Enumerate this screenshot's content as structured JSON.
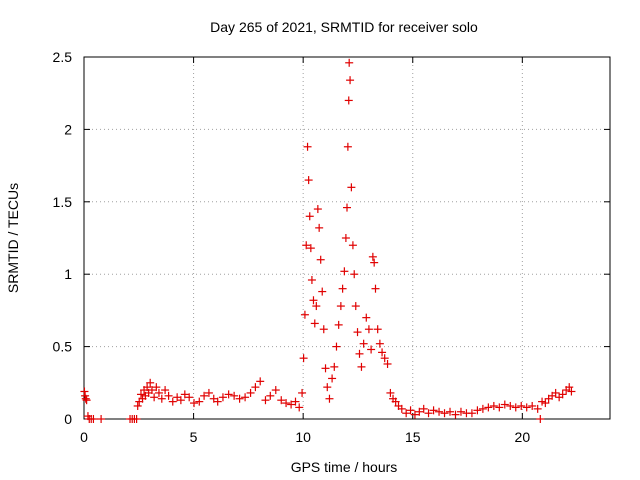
{
  "chart_data": {
    "type": "scatter",
    "title": "Day 265 of 2021, SRMTID for receiver solo",
    "xlabel": "GPS time / hours",
    "ylabel": "SRMTID / TECUs",
    "xlim": [
      0,
      24
    ],
    "ylim": [
      0,
      2.5
    ],
    "xticks": [
      0,
      5,
      10,
      15,
      20
    ],
    "yticks": [
      0,
      0.5,
      1,
      1.5,
      2,
      2.5
    ],
    "xtick_labels": [
      "0",
      "5",
      "10",
      "15",
      "20"
    ],
    "ytick_labels": [
      "0",
      "0.5",
      "1",
      "1.5",
      "2",
      "2.5"
    ],
    "grid": true,
    "marker": "plus",
    "marker_color": "#e00000",
    "series": [
      {
        "name": "SRMTID",
        "points": [
          [
            0.02,
            0.19
          ],
          [
            0.05,
            0.16
          ],
          [
            0.08,
            0.14
          ],
          [
            0.12,
            0.13
          ],
          [
            0.18,
            0.02
          ],
          [
            0.24,
            0.0
          ],
          [
            0.33,
            0.0
          ],
          [
            0.43,
            0.0
          ],
          [
            0.78,
            0.0
          ],
          [
            2.1,
            0.0
          ],
          [
            2.2,
            0.0
          ],
          [
            2.3,
            0.0
          ],
          [
            2.4,
            0.0
          ],
          [
            2.45,
            0.09
          ],
          [
            2.52,
            0.12
          ],
          [
            2.6,
            0.17
          ],
          [
            2.67,
            0.14
          ],
          [
            2.74,
            0.2
          ],
          [
            2.8,
            0.16
          ],
          [
            2.88,
            0.22
          ],
          [
            2.95,
            0.18
          ],
          [
            3.02,
            0.25
          ],
          [
            3.1,
            0.2
          ],
          [
            3.2,
            0.15
          ],
          [
            3.3,
            0.22
          ],
          [
            3.42,
            0.18
          ],
          [
            3.55,
            0.14
          ],
          [
            3.7,
            0.2
          ],
          [
            3.86,
            0.16
          ],
          [
            4.05,
            0.12
          ],
          [
            4.25,
            0.15
          ],
          [
            4.42,
            0.13
          ],
          [
            4.6,
            0.17
          ],
          [
            4.8,
            0.15
          ],
          [
            5.02,
            0.11
          ],
          [
            5.26,
            0.12
          ],
          [
            5.48,
            0.16
          ],
          [
            5.7,
            0.18
          ],
          [
            5.92,
            0.14
          ],
          [
            6.1,
            0.12
          ],
          [
            6.34,
            0.15
          ],
          [
            6.6,
            0.17
          ],
          [
            6.85,
            0.16
          ],
          [
            7.1,
            0.14
          ],
          [
            7.35,
            0.15
          ],
          [
            7.6,
            0.18
          ],
          [
            7.82,
            0.22
          ],
          [
            8.04,
            0.26
          ],
          [
            8.28,
            0.13
          ],
          [
            8.5,
            0.16
          ],
          [
            8.75,
            0.2
          ],
          [
            9.0,
            0.13
          ],
          [
            9.22,
            0.11
          ],
          [
            9.45,
            0.1
          ],
          [
            9.65,
            0.12
          ],
          [
            9.82,
            0.08
          ],
          [
            9.95,
            0.18
          ],
          [
            10.02,
            0.42
          ],
          [
            10.08,
            0.72
          ],
          [
            10.14,
            1.2
          ],
          [
            10.2,
            1.88
          ],
          [
            10.25,
            1.65
          ],
          [
            10.3,
            1.4
          ],
          [
            10.35,
            1.18
          ],
          [
            10.4,
            0.96
          ],
          [
            10.47,
            0.82
          ],
          [
            10.53,
            0.66
          ],
          [
            10.6,
            0.78
          ],
          [
            10.67,
            1.45
          ],
          [
            10.73,
            1.32
          ],
          [
            10.8,
            1.1
          ],
          [
            10.87,
            0.88
          ],
          [
            10.94,
            0.62
          ],
          [
            11.02,
            0.35
          ],
          [
            11.1,
            0.22
          ],
          [
            11.2,
            0.14
          ],
          [
            11.32,
            0.28
          ],
          [
            11.42,
            0.36
          ],
          [
            11.52,
            0.5
          ],
          [
            11.62,
            0.65
          ],
          [
            11.72,
            0.78
          ],
          [
            11.8,
            0.9
          ],
          [
            11.88,
            1.02
          ],
          [
            11.95,
            1.25
          ],
          [
            12.0,
            1.46
          ],
          [
            12.04,
            1.88
          ],
          [
            12.08,
            2.2
          ],
          [
            12.1,
            2.46
          ],
          [
            12.14,
            2.34
          ],
          [
            12.2,
            1.6
          ],
          [
            12.27,
            1.2
          ],
          [
            12.33,
            1.0
          ],
          [
            12.4,
            0.78
          ],
          [
            12.48,
            0.6
          ],
          [
            12.57,
            0.45
          ],
          [
            12.66,
            0.36
          ],
          [
            12.76,
            0.52
          ],
          [
            12.88,
            0.7
          ],
          [
            13.0,
            0.62
          ],
          [
            13.1,
            0.48
          ],
          [
            13.18,
            1.12
          ],
          [
            13.24,
            1.08
          ],
          [
            13.3,
            0.9
          ],
          [
            13.4,
            0.62
          ],
          [
            13.5,
            0.52
          ],
          [
            13.6,
            0.46
          ],
          [
            13.72,
            0.42
          ],
          [
            13.85,
            0.38
          ],
          [
            13.98,
            0.18
          ],
          [
            14.1,
            0.14
          ],
          [
            14.22,
            0.12
          ],
          [
            14.35,
            0.09
          ],
          [
            14.5,
            0.07
          ],
          [
            14.7,
            0.04
          ],
          [
            14.9,
            0.06
          ],
          [
            15.1,
            0.03
          ],
          [
            15.3,
            0.05
          ],
          [
            15.5,
            0.07
          ],
          [
            15.72,
            0.04
          ],
          [
            15.95,
            0.06
          ],
          [
            16.2,
            0.05
          ],
          [
            16.45,
            0.04
          ],
          [
            16.7,
            0.05
          ],
          [
            16.95,
            0.03
          ],
          [
            17.2,
            0.05
          ],
          [
            17.45,
            0.04
          ],
          [
            17.7,
            0.04
          ],
          [
            17.95,
            0.06
          ],
          [
            18.2,
            0.07
          ],
          [
            18.45,
            0.08
          ],
          [
            18.7,
            0.09
          ],
          [
            18.95,
            0.08
          ],
          [
            19.2,
            0.1
          ],
          [
            19.45,
            0.09
          ],
          [
            19.7,
            0.08
          ],
          [
            19.95,
            0.09
          ],
          [
            20.2,
            0.08
          ],
          [
            20.45,
            0.09
          ],
          [
            20.7,
            0.07
          ],
          [
            20.82,
            0.0
          ],
          [
            20.9,
            0.12
          ],
          [
            21.05,
            0.11
          ],
          [
            21.2,
            0.14
          ],
          [
            21.36,
            0.16
          ],
          [
            21.52,
            0.18
          ],
          [
            21.68,
            0.15
          ],
          [
            21.84,
            0.17
          ],
          [
            22.0,
            0.2
          ],
          [
            22.14,
            0.22
          ],
          [
            22.24,
            0.19
          ]
        ]
      }
    ]
  }
}
